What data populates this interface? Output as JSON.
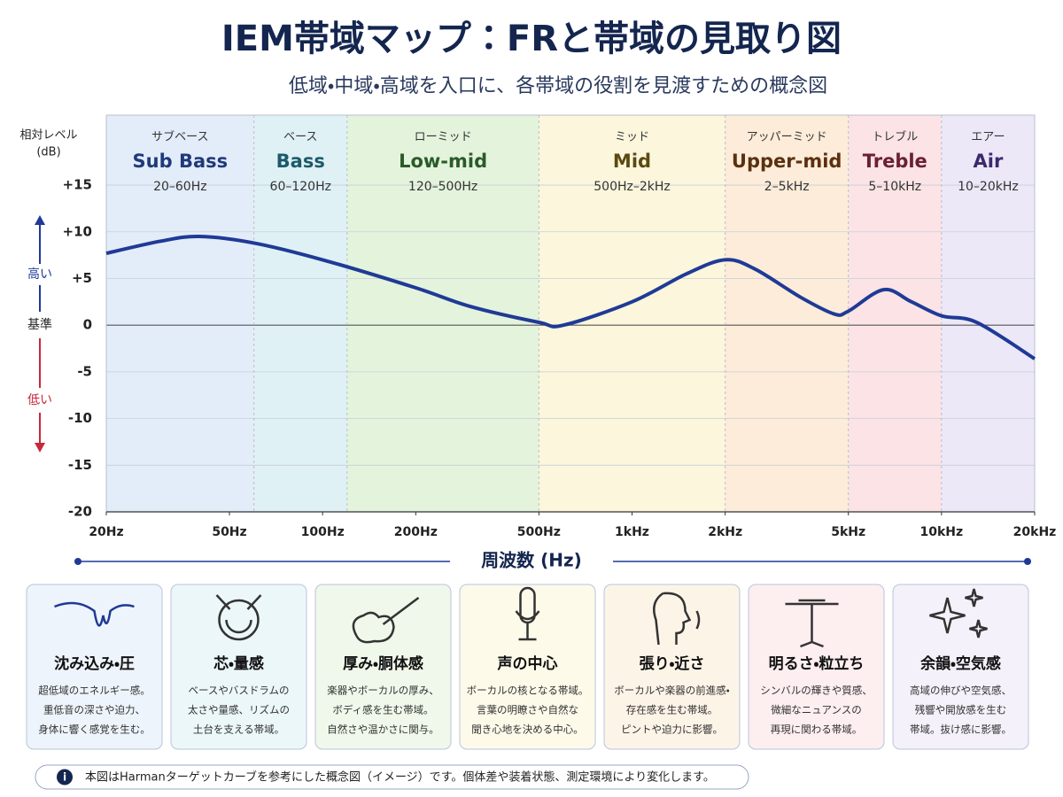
{
  "chart_data": {
    "type": "line",
    "title": "IEM帯域マップ：FRと帯域の見取り図",
    "subtitle": "低域・中域・高域を入口に、各帯域の役割を見渡すための概念図",
    "ylabel_lines": [
      "相対レベル",
      "(dB)"
    ],
    "level_labels": {
      "high": "高い",
      "ref": "基準",
      "low": "低い"
    },
    "xlabel": "周波数 (Hz)",
    "xscale": "log",
    "xlim": [
      20,
      20000
    ],
    "ylim": [
      -20,
      22.5
    ],
    "xticks": [
      {
        "value": 20,
        "label": "20Hz"
      },
      {
        "value": 50,
        "label": "50Hz"
      },
      {
        "value": 100,
        "label": "100Hz"
      },
      {
        "value": 200,
        "label": "200Hz"
      },
      {
        "value": 500,
        "label": "500Hz"
      },
      {
        "value": 1000,
        "label": "1kHz"
      },
      {
        "value": 2000,
        "label": "2kHz"
      },
      {
        "value": 5000,
        "label": "5kHz"
      },
      {
        "value": 10000,
        "label": "10kHz"
      },
      {
        "value": 20000,
        "label": "20kHz"
      }
    ],
    "yticks": [
      {
        "value": 15,
        "label": "+15"
      },
      {
        "value": 10,
        "label": "+10"
      },
      {
        "value": 5,
        "label": "+5"
      },
      0,
      -5,
      -10,
      -15,
      -20
    ],
    "grid": true,
    "bands": [
      {
        "name_ja": "サブベース",
        "name": "Sub Bass",
        "range": "20–60Hz",
        "from": 20,
        "to": 60,
        "color": "#e3ecf9",
        "text_color": "#1f3a7a"
      },
      {
        "name_ja": "ベース",
        "name": "Bass",
        "range": "60–120Hz",
        "from": 60,
        "to": 120,
        "color": "#dff1f5",
        "text_color": "#1b5a6a"
      },
      {
        "name_ja": "ローミッド",
        "name": "Low-mid",
        "range": "120–500Hz",
        "from": 120,
        "to": 500,
        "color": "#e4f3dc",
        "text_color": "#2a5a2a"
      },
      {
        "name_ja": "ミッド",
        "name": "Mid",
        "range": "500Hz–2kHz",
        "from": 500,
        "to": 2000,
        "color": "#fbf6dc",
        "text_color": "#5a4a10"
      },
      {
        "name_ja": "アッパーミッド",
        "name": "Upper-mid",
        "range": "2–5kHz",
        "from": 2000,
        "to": 5000,
        "color": "#fcecd9",
        "text_color": "#5a3010"
      },
      {
        "name_ja": "トレブル",
        "name": "Treble",
        "range": "5–10kHz",
        "from": 5000,
        "to": 10000,
        "color": "#fbe3e6",
        "text_color": "#6a2030"
      },
      {
        "name_ja": "エアー",
        "name": "Air",
        "range": "10–20kHz",
        "from": 10000,
        "to": 20000,
        "color": "#ece8f7",
        "text_color": "#3a2a6a"
      }
    ],
    "x": [
      20,
      30,
      40,
      60,
      100,
      200,
      300,
      500,
      600,
      1000,
      1500,
      2000,
      2500,
      3500,
      4500,
      5000,
      6500,
      8000,
      10000,
      13000,
      20000
    ],
    "values": [
      7.7,
      9,
      9.5,
      8.8,
      7,
      4,
      2,
      0.3,
      0,
      2.5,
      5.5,
      7,
      6,
      3,
      1.2,
      1.5,
      3.8,
      2.5,
      1,
      0.3,
      -3.6
    ],
    "color": "#1f3a96"
  },
  "cards": [
    {
      "title": "沈み込み・圧",
      "lines": [
        "超低域のエネルギー感。",
        "重低音の深さや迫力、",
        "身体に響く感覚を生む。"
      ]
    },
    {
      "title": "芯・量感",
      "lines": [
        "ベースやバスドラムの",
        "太さや量感、リズムの",
        "土台を支える帯域。"
      ]
    },
    {
      "title": "厚み・胴体感",
      "lines": [
        "楽器やボーカルの厚み、",
        "ボディ感を生む帯域。",
        "自然さや温かさに関与。"
      ]
    },
    {
      "title": "声の中心",
      "lines": [
        "ボーカルの核となる帯域。",
        "言葉の明瞭さや自然な",
        "聞き心地を決める中心。"
      ]
    },
    {
      "title": "張り・近さ",
      "lines": [
        "ボーカルや楽器の前進感・",
        "存在感を生む帯域。",
        "ピントや迫力に影響。"
      ]
    },
    {
      "title": "明るさ・粒立ち",
      "lines": [
        "シンバルの輝きや質感、",
        "微細なニュアンスの",
        "再現に関わる帯域。"
      ]
    },
    {
      "title": "余韻・空気感",
      "lines": [
        "高域の伸びや空気感、",
        "残響や開放感を生む",
        "帯域。抜け感に影響。"
      ]
    }
  ],
  "note": "本図はHarmanターゲットカーブを参考にした概念図（イメージ）です。個体差や装着状態、測定環境により変化します。"
}
